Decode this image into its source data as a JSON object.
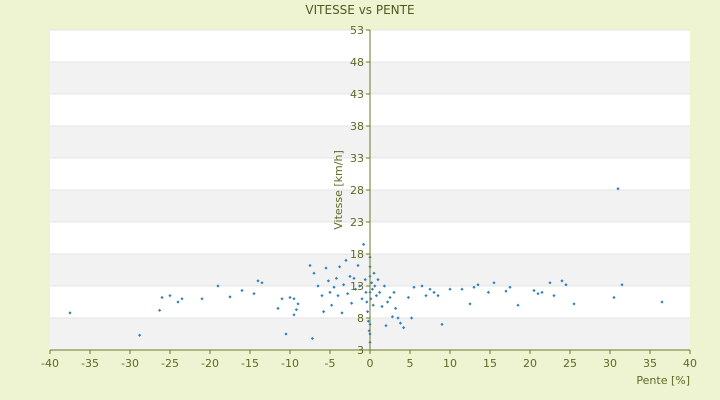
{
  "chart_data": {
    "type": "scatter",
    "title": "VITESSE vs PENTE",
    "xlabel": "Pente [%]",
    "ylabel": "Vitesse [km/h]",
    "xlim": [
      -40,
      40
    ],
    "ylim": [
      3,
      53
    ],
    "x_ticks": [
      "-40",
      "-35",
      "-30",
      "-25",
      "-20",
      "-15",
      "-10",
      "-5",
      "0",
      "5",
      "10",
      "15",
      "20",
      "25",
      "30",
      "35",
      "40"
    ],
    "y_ticks": [
      "3",
      "8",
      "13",
      "18",
      "23",
      "28",
      "33",
      "38",
      "43",
      "48",
      "53"
    ],
    "grid": true,
    "band_colors": [
      "#ffffff",
      "#f2f2f2"
    ],
    "marker_color": "#2e7fc2",
    "axis_color": "#6b7a2a",
    "points": [
      [
        -37.5,
        8.8
      ],
      [
        -28.8,
        5.3
      ],
      [
        -26.3,
        9.2
      ],
      [
        -26,
        11.2
      ],
      [
        -25,
        11.5
      ],
      [
        -24,
        10.5
      ],
      [
        -23.5,
        11
      ],
      [
        -21,
        11
      ],
      [
        -19,
        13
      ],
      [
        -17.5,
        11.3
      ],
      [
        -16,
        12.3
      ],
      [
        -14.5,
        11.8
      ],
      [
        -14,
        13.8
      ],
      [
        -13.5,
        13.5
      ],
      [
        -11.5,
        9.5
      ],
      [
        -11,
        11
      ],
      [
        -10.5,
        5.5
      ],
      [
        -10,
        11.2
      ],
      [
        -9.5,
        11
      ],
      [
        -9.5,
        8.5
      ],
      [
        -9.2,
        9.3
      ],
      [
        -9,
        10.2
      ],
      [
        -7.5,
        16.2
      ],
      [
        -7.2,
        4.8
      ],
      [
        -7,
        15
      ],
      [
        -6.5,
        13
      ],
      [
        -6,
        11.5
      ],
      [
        -5.8,
        9
      ],
      [
        -5.5,
        15.8
      ],
      [
        -5.2,
        13.8
      ],
      [
        -5,
        12
      ],
      [
        -4.8,
        10
      ],
      [
        -4.5,
        12.8
      ],
      [
        -4.2,
        14.2
      ],
      [
        -4,
        11.5
      ],
      [
        -3.8,
        16
      ],
      [
        -3.5,
        8.8
      ],
      [
        -3.3,
        13.2
      ],
      [
        -3,
        17
      ],
      [
        -2.8,
        11.8
      ],
      [
        -2.5,
        14.5
      ],
      [
        -2.3,
        10.3
      ],
      [
        -2,
        14.2
      ],
      [
        -1.8,
        12.5
      ],
      [
        -1.5,
        16.2
      ],
      [
        -1.3,
        13
      ],
      [
        -1,
        11
      ],
      [
        -0.8,
        19.5
      ],
      [
        -0.6,
        14
      ],
      [
        -0.5,
        12
      ],
      [
        -0.4,
        10.5
      ],
      [
        -0.3,
        9
      ],
      [
        -0.2,
        7.5
      ],
      [
        -0.1,
        6
      ],
      [
        0,
        4.2
      ],
      [
        0,
        5.5
      ],
      [
        0,
        7
      ],
      [
        0,
        12
      ],
      [
        0,
        14.5
      ],
      [
        0,
        16
      ],
      [
        0,
        17.5
      ],
      [
        0.1,
        11
      ],
      [
        0.2,
        13.5
      ],
      [
        0.3,
        12.5
      ],
      [
        0.4,
        10
      ],
      [
        0.5,
        15
      ],
      [
        0.6,
        13
      ],
      [
        0.8,
        11.5
      ],
      [
        1,
        14
      ],
      [
        1.2,
        12
      ],
      [
        1.5,
        9.8
      ],
      [
        1.8,
        13
      ],
      [
        2,
        6.8
      ],
      [
        2.2,
        10.5
      ],
      [
        2.5,
        11.2
      ],
      [
        2.8,
        8.2
      ],
      [
        3,
        12
      ],
      [
        3.2,
        9.5
      ],
      [
        3.5,
        8
      ],
      [
        3.8,
        7.2
      ],
      [
        4.2,
        6.5
      ],
      [
        4.8,
        11.2
      ],
      [
        5.2,
        8
      ],
      [
        5.5,
        12.8
      ],
      [
        6.5,
        13
      ],
      [
        7,
        11.5
      ],
      [
        7.5,
        12.5
      ],
      [
        8,
        12
      ],
      [
        8.5,
        11.5
      ],
      [
        9,
        7
      ],
      [
        10,
        12.5
      ],
      [
        11.5,
        12.5
      ],
      [
        12.5,
        10.2
      ],
      [
        13,
        12.8
      ],
      [
        13.5,
        13.2
      ],
      [
        14.8,
        12
      ],
      [
        15.5,
        13.5
      ],
      [
        17,
        12.2
      ],
      [
        17.5,
        12.8
      ],
      [
        18.5,
        10
      ],
      [
        20.5,
        12.3
      ],
      [
        21,
        11.8
      ],
      [
        21.5,
        12
      ],
      [
        22.5,
        13.5
      ],
      [
        23,
        11.5
      ],
      [
        24,
        13.8
      ],
      [
        24.5,
        13.2
      ],
      [
        25.5,
        10.2
      ],
      [
        30.5,
        11.2
      ],
      [
        31,
        28.2
      ],
      [
        31.5,
        13.2
      ],
      [
        36.5,
        10.5
      ]
    ]
  }
}
